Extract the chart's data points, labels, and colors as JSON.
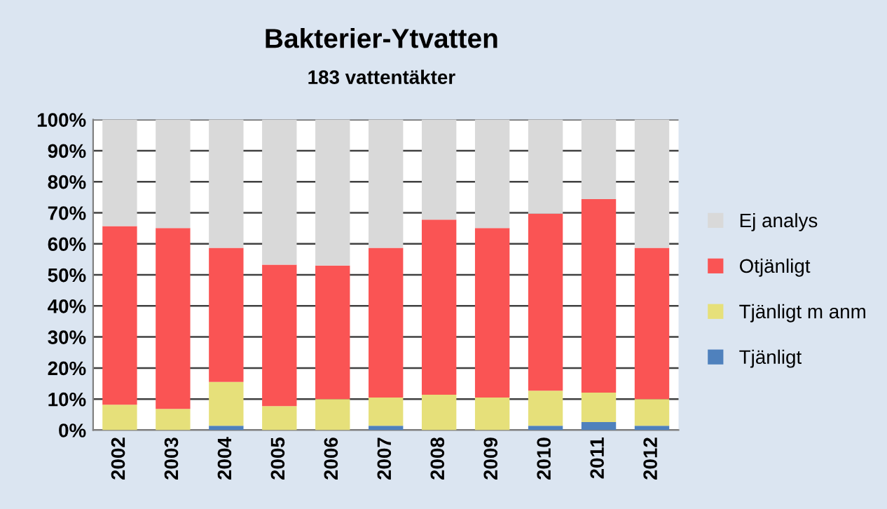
{
  "chart_data": {
    "type": "bar",
    "title": "Bakterier-Ytvatten",
    "subtitle": "183 vattentäkter",
    "categories": [
      "2002",
      "2003",
      "2004",
      "2005",
      "2006",
      "2007",
      "2008",
      "2009",
      "2010",
      "2011",
      "2012"
    ],
    "stacked": true,
    "series": [
      {
        "name": "Tjänligt",
        "color": "#4f81bd",
        "values": [
          0,
          0,
          1.4,
          0,
          0,
          1.4,
          0,
          0,
          1.4,
          2.6,
          1.4
        ]
      },
      {
        "name": "Tjänligt m anm",
        "color": "#e6e07a",
        "values": [
          8.2,
          6.8,
          14.1,
          7.7,
          10.0,
          9.1,
          11.4,
          10.5,
          11.3,
          9.5,
          8.6
        ]
      },
      {
        "name": "Otjänligt",
        "color": "#fa5454",
        "values": [
          57.5,
          58.3,
          43.2,
          45.6,
          43.0,
          48.2,
          56.4,
          54.6,
          57.0,
          62.3,
          48.7
        ]
      },
      {
        "name": "Ej analys",
        "color": "#d9d9d9",
        "values": [
          34.3,
          34.9,
          41.3,
          46.7,
          47.0,
          41.3,
          32.2,
          34.9,
          30.3,
          25.6,
          41.3
        ]
      }
    ],
    "ylim": [
      0,
      100
    ],
    "yticks": [
      {
        "value": 0,
        "label": "0%"
      },
      {
        "value": 10,
        "label": "10%"
      },
      {
        "value": 20,
        "label": "20%"
      },
      {
        "value": 30,
        "label": "30%"
      },
      {
        "value": 40,
        "label": "40%"
      },
      {
        "value": 50,
        "label": "50%"
      },
      {
        "value": 60,
        "label": "60%"
      },
      {
        "value": 70,
        "label": "70%"
      },
      {
        "value": 80,
        "label": "80%"
      },
      {
        "value": 90,
        "label": "90%"
      },
      {
        "value": 100,
        "label": "100%"
      }
    ],
    "grid": "y",
    "legend": "right"
  }
}
